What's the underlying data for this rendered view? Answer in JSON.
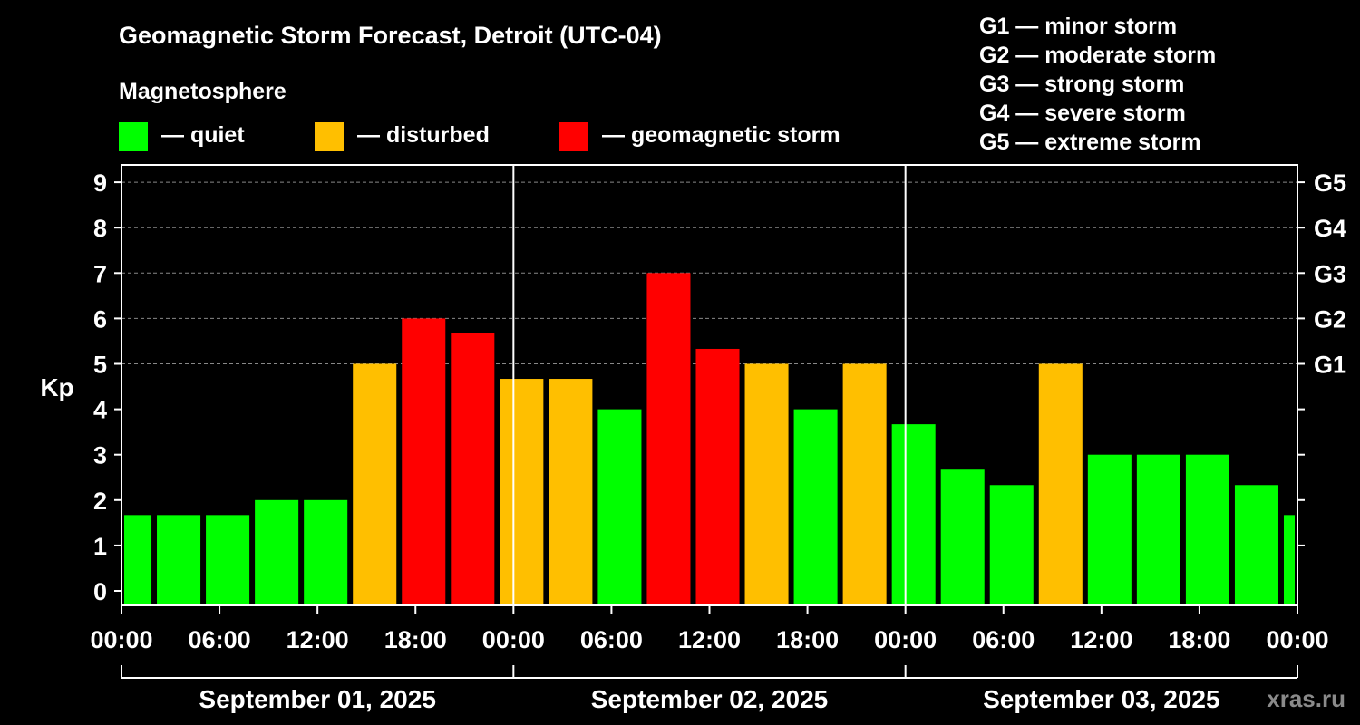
{
  "title": "Geomagnetic Storm Forecast, Detroit (UTC-04)",
  "legend_title": "Magnetosphere",
  "legend": [
    {
      "label": "— quiet",
      "color": "#00ff00"
    },
    {
      "label": "— disturbed",
      "color": "#ffbf00"
    },
    {
      "label": "— geomagnetic storm",
      "color": "#ff0000"
    }
  ],
  "storm_scale": [
    "G1 — minor storm",
    "G2 — moderate storm",
    "G3 — strong storm",
    "G4 — severe storm",
    "G5 — extreme storm"
  ],
  "watermark": "xras.ru",
  "colors": {
    "quiet": "#00ff00",
    "disturbed": "#ffbf00",
    "storm": "#ff0000",
    "background": "#000000",
    "grid": "#888888"
  },
  "chart_data": {
    "type": "bar",
    "ylabel": "Kp",
    "ylim": [
      0,
      9
    ],
    "xlim": [
      0,
      72
    ],
    "yticks": [
      "0",
      "1",
      "2",
      "3",
      "4",
      "5",
      "6",
      "7",
      "8",
      "9"
    ],
    "right_ticks": [
      {
        "kp": 5,
        "label": "G1"
      },
      {
        "kp": 6,
        "label": "G2"
      },
      {
        "kp": 7,
        "label": "G3"
      },
      {
        "kp": 8,
        "label": "G4"
      },
      {
        "kp": 9,
        "label": "G5"
      }
    ],
    "grid": "horizontal dashed at Kp 5-9",
    "xtick_hours": [
      0,
      6,
      12,
      18,
      24,
      30,
      36,
      42,
      48,
      54,
      60,
      66,
      72
    ],
    "xtick_labels": [
      "00:00",
      "06:00",
      "12:00",
      "18:00",
      "00:00",
      "06:00",
      "12:00",
      "18:00",
      "00:00",
      "06:00",
      "12:00",
      "18:00",
      "00:00"
    ],
    "day_separators_hours": [
      24,
      48
    ],
    "days": [
      {
        "label": "September 01, 2025",
        "start_hour": 0,
        "end_hour": 24
      },
      {
        "label": "September 02, 2025",
        "start_hour": 24,
        "end_hour": 48
      },
      {
        "label": "September 03, 2025",
        "start_hour": 48,
        "end_hour": 72
      }
    ],
    "bars": [
      {
        "start_hour": 0,
        "end_hour": 2,
        "kp": 1.67,
        "level": "quiet"
      },
      {
        "start_hour": 2,
        "end_hour": 5,
        "kp": 1.67,
        "level": "quiet"
      },
      {
        "start_hour": 5,
        "end_hour": 8,
        "kp": 1.67,
        "level": "quiet"
      },
      {
        "start_hour": 8,
        "end_hour": 11,
        "kp": 2.0,
        "level": "quiet"
      },
      {
        "start_hour": 11,
        "end_hour": 14,
        "kp": 2.0,
        "level": "quiet"
      },
      {
        "start_hour": 14,
        "end_hour": 17,
        "kp": 5.0,
        "level": "disturbed"
      },
      {
        "start_hour": 17,
        "end_hour": 20,
        "kp": 6.0,
        "level": "storm"
      },
      {
        "start_hour": 20,
        "end_hour": 23,
        "kp": 5.67,
        "level": "storm"
      },
      {
        "start_hour": 23,
        "end_hour": 26,
        "kp": 4.67,
        "level": "disturbed"
      },
      {
        "start_hour": 26,
        "end_hour": 29,
        "kp": 4.67,
        "level": "disturbed"
      },
      {
        "start_hour": 29,
        "end_hour": 32,
        "kp": 4.0,
        "level": "quiet"
      },
      {
        "start_hour": 32,
        "end_hour": 35,
        "kp": 7.0,
        "level": "storm"
      },
      {
        "start_hour": 35,
        "end_hour": 38,
        "kp": 5.33,
        "level": "storm"
      },
      {
        "start_hour": 38,
        "end_hour": 41,
        "kp": 5.0,
        "level": "disturbed"
      },
      {
        "start_hour": 41,
        "end_hour": 44,
        "kp": 4.0,
        "level": "quiet"
      },
      {
        "start_hour": 44,
        "end_hour": 47,
        "kp": 5.0,
        "level": "disturbed"
      },
      {
        "start_hour": 47,
        "end_hour": 50,
        "kp": 3.67,
        "level": "quiet"
      },
      {
        "start_hour": 50,
        "end_hour": 53,
        "kp": 2.67,
        "level": "quiet"
      },
      {
        "start_hour": 53,
        "end_hour": 56,
        "kp": 2.33,
        "level": "quiet"
      },
      {
        "start_hour": 56,
        "end_hour": 59,
        "kp": 5.0,
        "level": "disturbed"
      },
      {
        "start_hour": 59,
        "end_hour": 62,
        "kp": 3.0,
        "level": "quiet"
      },
      {
        "start_hour": 62,
        "end_hour": 65,
        "kp": 3.0,
        "level": "quiet"
      },
      {
        "start_hour": 65,
        "end_hour": 68,
        "kp": 3.0,
        "level": "quiet"
      },
      {
        "start_hour": 68,
        "end_hour": 71,
        "kp": 2.33,
        "level": "quiet"
      },
      {
        "start_hour": 71,
        "end_hour": 72,
        "kp": 1.67,
        "level": "quiet"
      }
    ]
  }
}
